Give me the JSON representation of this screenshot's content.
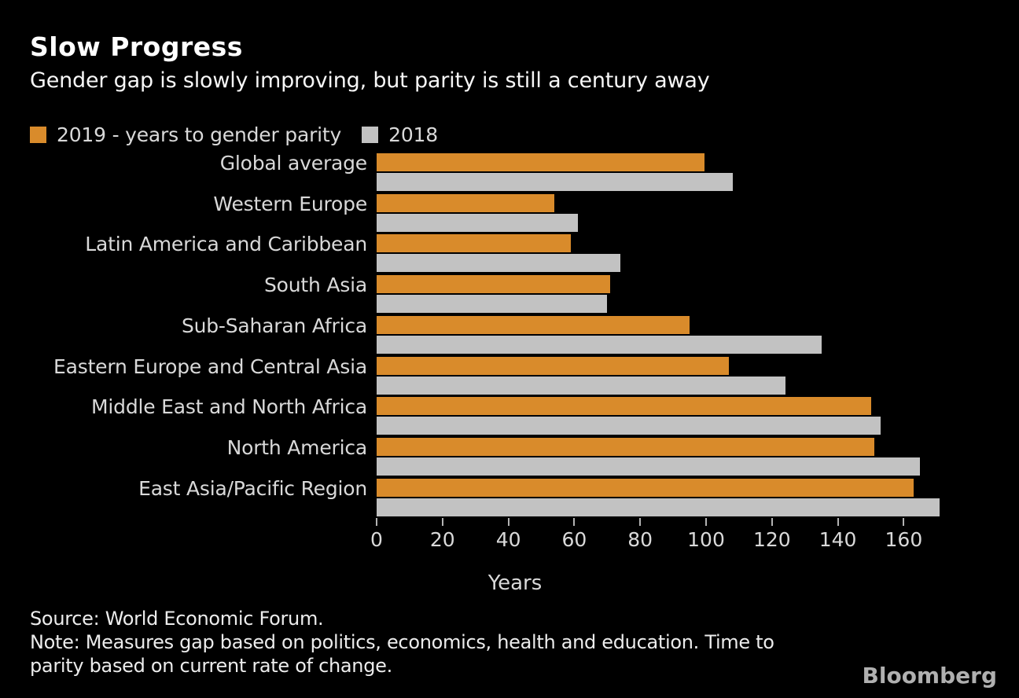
{
  "title": "Slow Progress",
  "subtitle": "Gender gap is slowly improving, but parity is still a century away",
  "chart_data": {
    "type": "bar",
    "orientation": "horizontal",
    "title": "Slow Progress",
    "subtitle": "Gender gap is slowly improving, but parity is still a century away",
    "categories": [
      "Global average",
      "Western Europe",
      "Latin America and Caribbean",
      "South Asia",
      "Sub-Saharan Africa",
      "Eastern Europe and Central Asia",
      "Middle East and North Africa",
      "North America",
      "East Asia/Pacific Region"
    ],
    "series": [
      {
        "name": "2019 - years to gender parity",
        "color": "#d98b2b",
        "values": [
          99.5,
          54,
          59,
          71,
          95,
          107,
          150,
          151,
          163
        ]
      },
      {
        "name": "2018",
        "color": "#c2c2c2",
        "values": [
          108,
          61,
          74,
          70,
          135,
          124,
          153,
          165,
          171
        ]
      }
    ],
    "xlabel": "Years",
    "xlim": [
      0,
      176
    ],
    "ticks": [
      0,
      20,
      40,
      60,
      80,
      100,
      120,
      140,
      160
    ],
    "legend_position": "top-left",
    "grid": false
  },
  "footer": {
    "source": "Source: World Economic Forum.",
    "note": "Note: Measures gap based on politics, economics, health and education. Time to parity based on current rate of change."
  },
  "branding": "Bloomberg",
  "colors": {
    "background": "#000000",
    "title_text": "#ffffff",
    "label_text": "#d9d9d9",
    "tick_mark": "#b3b3b3",
    "footer_text": "#ececec",
    "logo_text": "#b0b0b0",
    "bar_2019": "#d98b2b",
    "bar_2018": "#c2c2c2"
  }
}
